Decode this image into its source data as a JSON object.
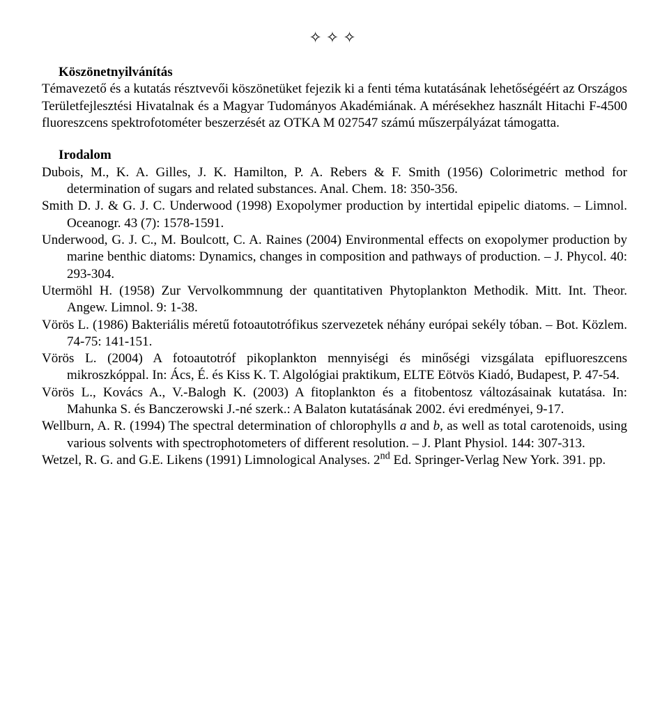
{
  "ornament": "✧✧✧",
  "acknowledgements": {
    "title": "Köszönetnyilvánítás",
    "body": "Témavezető és a kutatás résztvevői köszönetüket fejezik ki a fenti téma kutatásának lehetőségéért az Országos Területfejlesztési Hivatalnak és a Magyar Tudományos Akadémiának. A mérésekhez használt Hitachi F-4500 fluoreszcens spektrofotométer beszerzését az OTKA M 027547 számú műszerpályázat támogatta."
  },
  "references": {
    "heading": "Irodalom",
    "items": [
      {
        "text": "Dubois, M., K. A. Gilles, J. K. Hamilton, P. A. Rebers & F. Smith (1956) Colorimetric method for determination of sugars and related substances. Anal. Chem. 18: 350-356."
      },
      {
        "text": "Smith D. J. & G. J. C. Underwood (1998) Exopolymer production by intertidal epipelic diatoms. – Limnol. Oceanogr. 43 (7): 1578-1591."
      },
      {
        "text": "Underwood, G. J. C., M. Boulcott, C. A. Raines (2004) Environmental effects on exopolymer production by marine benthic diatoms: Dynamics, changes in composition and pathways of production. – J. Phycol. 40: 293-304."
      },
      {
        "text": "Utermöhl H. (1958) Zur Vervolkommnung der quantitativen Phytoplankton Methodik. Mitt. Int. Theor. Angew. Limnol. 9: 1-38."
      },
      {
        "text": "Vörös L. (1986) Bakteriális méretű fotoautotrófikus szervezetek néhány európai sekély tóban. – Bot. Közlem. 74-75: 141-151."
      },
      {
        "text": "Vörös L. (2004) A fotoautotróf pikoplankton mennyiségi és minőségi vizsgálata epifluoreszcens mikroszkóppal. In: Ács, É. és Kiss K. T. Algológiai praktikum, ELTE Eötvös Kiadó, Budapest, P. 47-54."
      },
      {
        "text": "Vörös L., Kovács A., V.-Balogh K. (2003) A fitoplankton és a fitobentosz változásainak kutatása. In: Mahunka S. és Banczerowski J.-né szerk.: A Balaton kutatásának 2002. évi eredményei, 9-17."
      },
      {
        "pre": "Wellburn, A. R. (1994) The spectral determination of chlorophylls ",
        "ital1": "a",
        "mid": " and ",
        "ital2": "b",
        "post": ", as well as total carotenoids, using various solvents with spectrophotometers of different resolution. – J. Plant Physiol. 144: 307-313."
      },
      {
        "pre2": "Wetzel, R. G. and G.E. Likens (1991) Limnological Analyses. 2",
        "sup": "nd",
        "post2": " Ed. Springer-Verlag New York. 391. pp."
      }
    ]
  }
}
